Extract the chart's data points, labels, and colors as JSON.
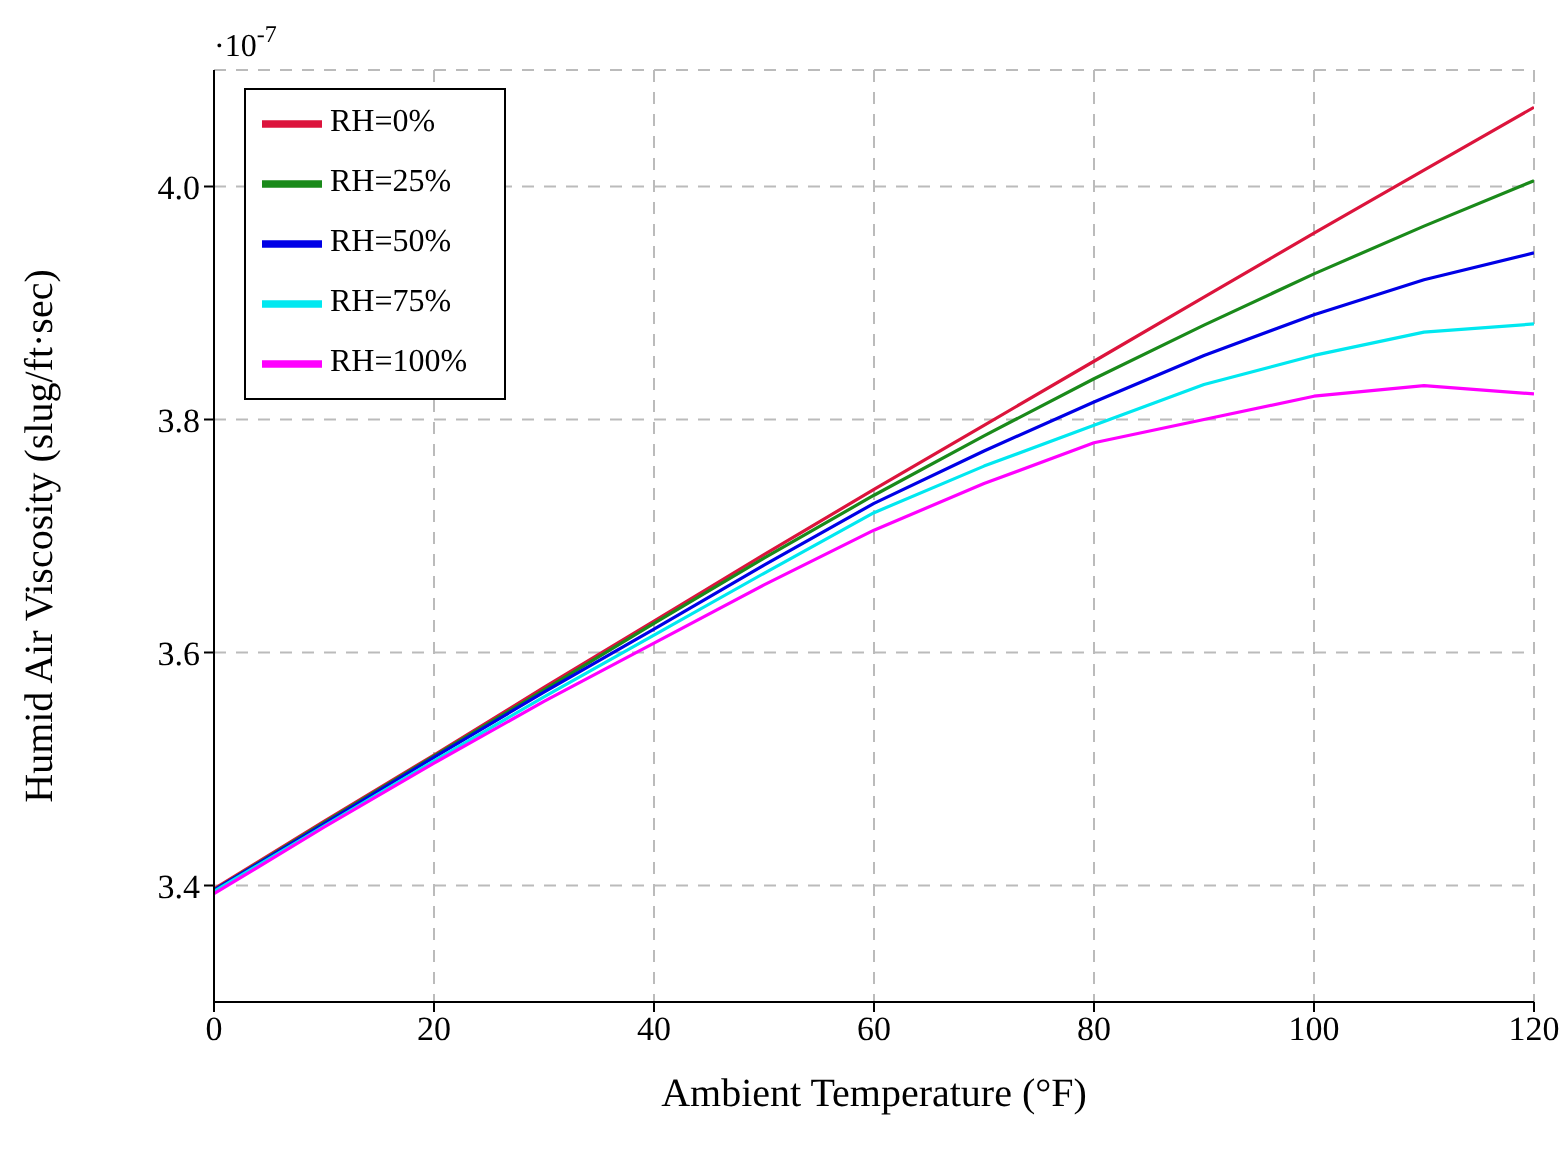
{
  "chart_data": {
    "type": "line",
    "xlabel": "Ambient Temperature (°F)",
    "ylabel": "Humid Air Viscosity (slug/ft·sec)",
    "annotations": [
      "·10$^{-7}$"
    ],
    "x": [
      0,
      10,
      20,
      30,
      40,
      50,
      60,
      70,
      80,
      90,
      100,
      110,
      120
    ],
    "series": [
      {
        "name": "RH=0%",
        "color": "#dc143c",
        "values": [
          3.397,
          3.455,
          3.512,
          3.57,
          3.627,
          3.684,
          3.74,
          3.795,
          3.85,
          3.905,
          3.96,
          4.014,
          4.068
        ]
      },
      {
        "name": "RH=25%",
        "color": "#1a8a1a",
        "values": [
          3.396,
          3.454,
          3.511,
          3.568,
          3.625,
          3.681,
          3.735,
          3.786,
          3.835,
          3.881,
          3.925,
          3.966,
          4.005
        ]
      },
      {
        "name": "RH=50%",
        "color": "#0000e6",
        "values": [
          3.396,
          3.453,
          3.51,
          3.566,
          3.62,
          3.675,
          3.728,
          3.773,
          3.815,
          3.855,
          3.89,
          3.92,
          3.943
        ]
      },
      {
        "name": "RH=75%",
        "color": "#00e8f0",
        "values": [
          3.395,
          3.451,
          3.507,
          3.562,
          3.615,
          3.668,
          3.72,
          3.76,
          3.795,
          3.83,
          3.855,
          3.875,
          3.882
        ]
      },
      {
        "name": "RH=100%",
        "color": "#ff00ff",
        "values": [
          3.393,
          3.45,
          3.505,
          3.558,
          3.608,
          3.658,
          3.705,
          3.745,
          3.78,
          3.8,
          3.82,
          3.829,
          3.822
        ]
      }
    ],
    "xlim": [
      0,
      120
    ],
    "xticks": [
      0,
      20,
      40,
      60,
      80,
      100,
      120
    ],
    "ylim": [
      3.3,
      4.1
    ],
    "yticks": [
      3.4,
      3.6,
      3.8,
      {
        "value": 4,
        "label": "4.0"
      }
    ],
    "grid": true,
    "legend": "top left",
    "marker": "none",
    "line_style": "solid"
  }
}
